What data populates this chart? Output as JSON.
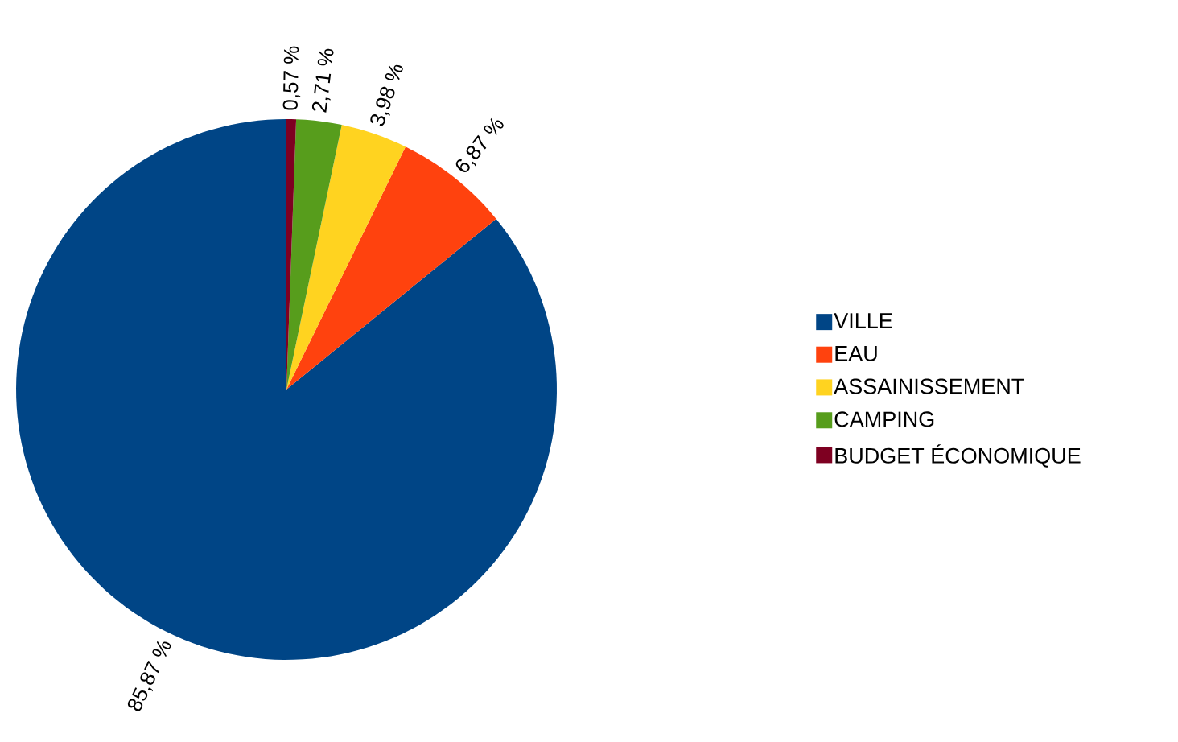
{
  "chart_data": {
    "type": "pie",
    "categories": [
      "VILLE",
      "EAU",
      "ASSAINISSEMENT",
      "CAMPING",
      "BUDGET ÉCONOMIQUE"
    ],
    "values": [
      85.87,
      6.87,
      3.98,
      2.71,
      0.57
    ],
    "value_labels": [
      "85,87 %",
      "6,87 %",
      "3,98 %",
      "2,71 %",
      "0,57 %"
    ],
    "colors": [
      "#004586",
      "#ff420e",
      "#ffd320",
      "#579d1c",
      "#7e0021"
    ],
    "legend": "right"
  }
}
